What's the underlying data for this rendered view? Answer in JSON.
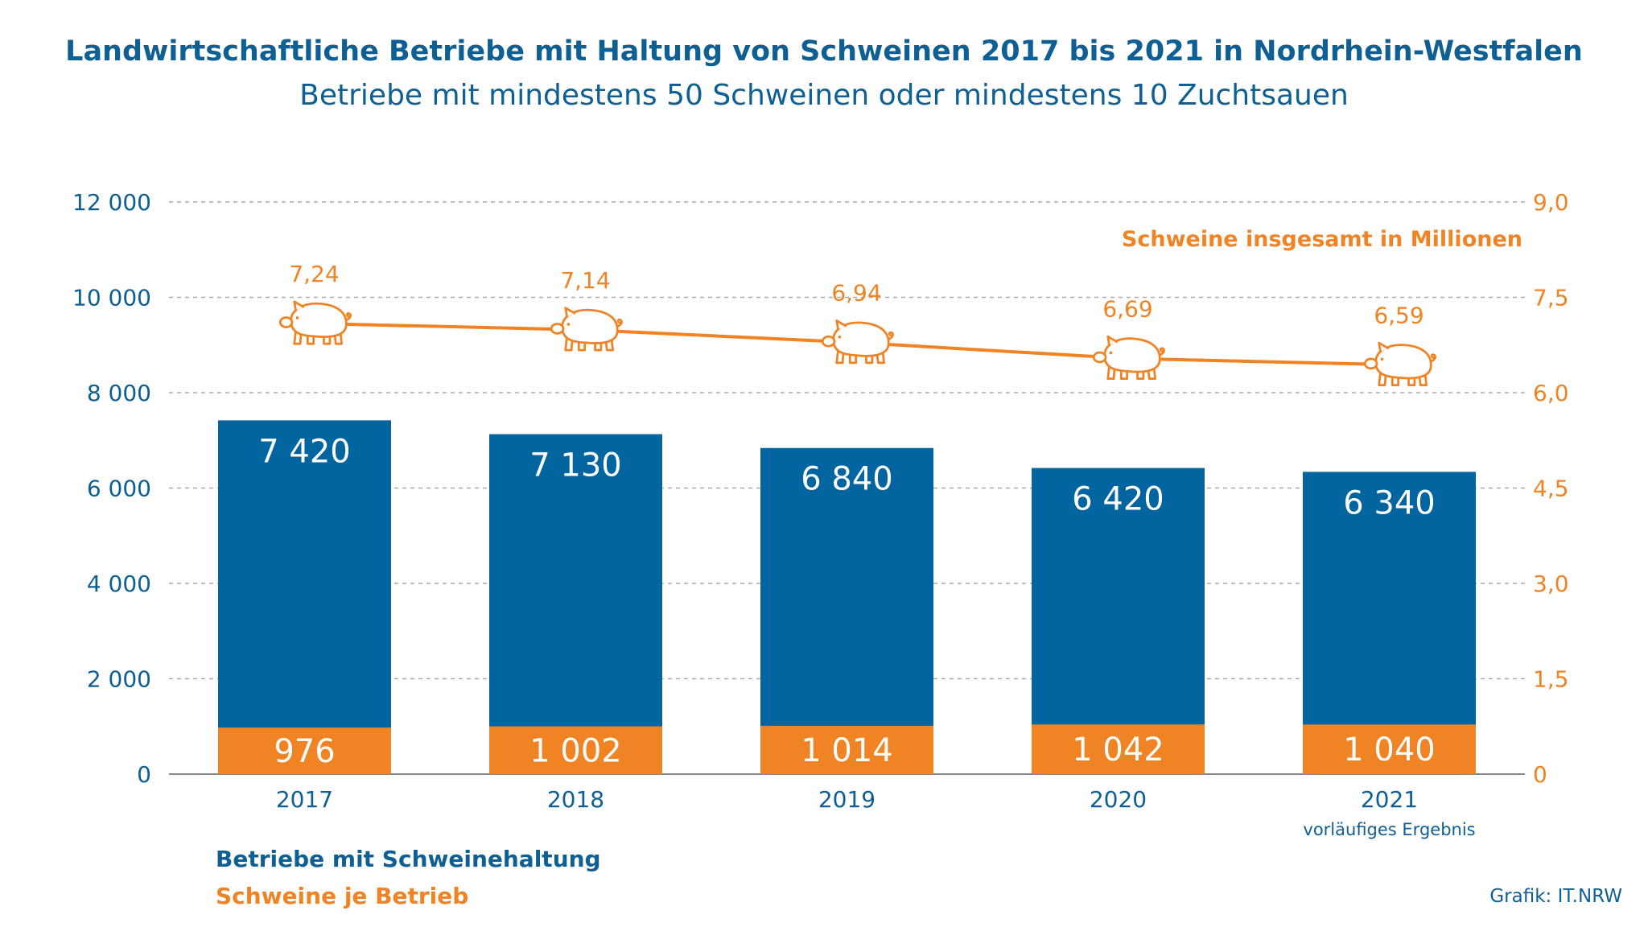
{
  "title": "Landwirtschaftliche Betriebe mit Haltung von Schweinen 2017 bis 2021 in Nordrhein-Westfalen",
  "subtitle": "Betriebe mit mindestens 50 Schweinen oder mindestens 10 Zuchtsauen",
  "source": "Grafik: IT.NRW",
  "colors": {
    "blue": "#03659f",
    "orange": "#f08323",
    "text_blue": "#0e5f93",
    "grid": "#aaaaaa"
  },
  "legend": {
    "blue_label": "Betriebe mit Schweinehaltung",
    "orange_label": "Schweine je Betrieb"
  },
  "chart_data": {
    "type": "bar",
    "categories": [
      "2017",
      "2018",
      "2019",
      "2020",
      "2021"
    ],
    "category_notes": [
      "",
      "",
      "",
      "",
      "vorläufiges Ergebnis"
    ],
    "series": [
      {
        "name": "Betriebe mit Schweinehaltung",
        "axis": "left",
        "style": "bar",
        "values": [
          7420,
          7130,
          6840,
          6420,
          6340
        ],
        "labels": [
          "7 420",
          "7 130",
          "6 840",
          "6 420",
          "6 340"
        ]
      },
      {
        "name": "Schweine je Betrieb",
        "axis": "left",
        "style": "bar-inset",
        "values": [
          976,
          1002,
          1014,
          1042,
          1040
        ],
        "labels": [
          "976",
          "1 002",
          "1 014",
          "1 042",
          "1 040"
        ]
      },
      {
        "name": "Schweine insgesamt in Millionen",
        "axis": "right",
        "style": "line-with-pig-icons",
        "values": [
          7.24,
          7.14,
          6.94,
          6.69,
          6.59
        ],
        "labels": [
          "7,24",
          "7,14",
          "6,94",
          "6,69",
          "6,59"
        ]
      }
    ],
    "left_axis": {
      "ylim": [
        0,
        12000
      ],
      "ticks": [
        "0",
        "2 000",
        "4 000",
        "6 000",
        "8 000",
        "10 000",
        "12 000"
      ]
    },
    "right_axis": {
      "ylim": [
        0,
        9
      ],
      "ticks": [
        "0",
        "1,5",
        "3,0",
        "4,5",
        "6,0",
        "7,5",
        "9,0"
      ]
    },
    "grid": true,
    "legend_placement": "bottom-left"
  }
}
